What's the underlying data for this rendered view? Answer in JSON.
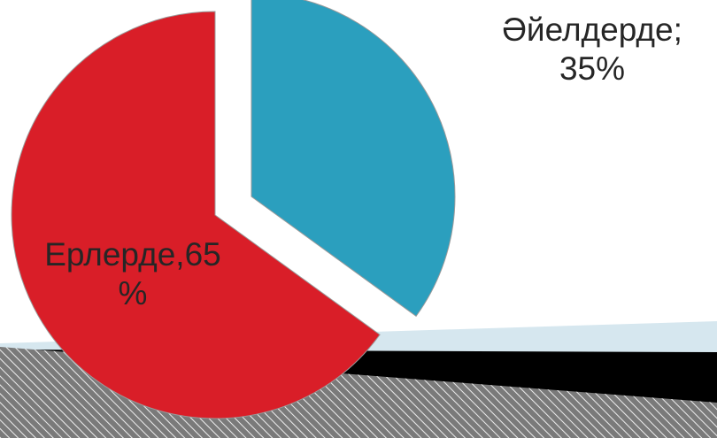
{
  "chart_data": {
    "type": "pie",
    "title": "",
    "slices": [
      {
        "name": "Әйелдерде",
        "value": 35,
        "color": "#2b9fbe",
        "exploded": true,
        "label": [
          "Әйелдерде;",
          "35%"
        ]
      },
      {
        "name": "Ерлерде",
        "value": 65,
        "color": "#d91e28",
        "exploded": false,
        "label": [
          "Ерлерде,65",
          "%"
        ]
      }
    ],
    "legend": "none"
  },
  "theme": {
    "background": "#ffffff",
    "band_light": "#d6e7ef",
    "band_dark": "#000000",
    "hatch_base": "#7a7a7a",
    "hatch_line": "#eeeeee"
  }
}
